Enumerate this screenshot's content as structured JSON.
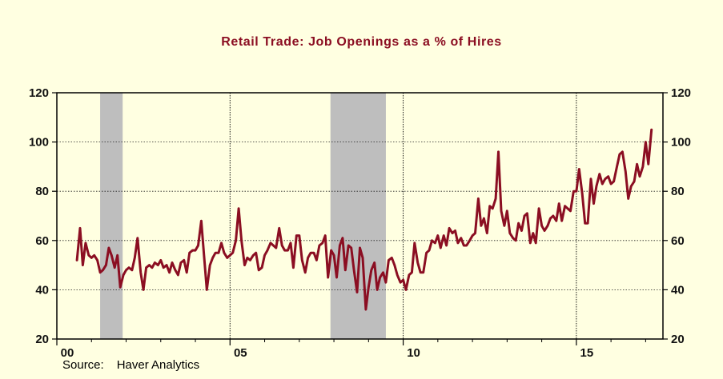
{
  "chart_data": {
    "type": "line",
    "title": "Retail Trade: Job Openings as a % of Hires",
    "source_label": "Source:",
    "source": "Haver Analytics",
    "ylim": [
      20,
      120
    ],
    "y_ticks": [
      20,
      40,
      60,
      80,
      100,
      120
    ],
    "y_tick_labels": [
      "20",
      "40",
      "60",
      "80",
      "100",
      "120"
    ],
    "x_range": [
      2000,
      2017.5
    ],
    "x_ticks": [
      2000,
      2005,
      2010,
      2015
    ],
    "x_tick_labels": [
      "00",
      "05",
      "10",
      "15"
    ],
    "x_vlines": [
      2005,
      2010,
      2015
    ],
    "grid": "dotted horizontal lines at 40, 60, 80, 100",
    "recessions": [
      [
        2001.25,
        2001.9
      ],
      [
        2007.9,
        2009.5
      ]
    ],
    "colors": {
      "line": "#8b0e22",
      "recession": "#bebebe",
      "background": "#ffffe1",
      "title": "#8b0e22"
    },
    "series": [
      {
        "x": [
          2000.58,
          2000.67,
          2000.75,
          2000.83,
          2000.92,
          2001.0,
          2001.08,
          2001.17,
          2001.25,
          2001.33,
          2001.42,
          2001.5,
          2001.58,
          2001.67,
          2001.75,
          2001.83,
          2001.92,
          2002.0,
          2002.08,
          2002.17,
          2002.25,
          2002.33,
          2002.42,
          2002.5,
          2002.58,
          2002.67,
          2002.75,
          2002.83,
          2002.92,
          2003.0,
          2003.08,
          2003.17,
          2003.25,
          2003.33,
          2003.42,
          2003.5,
          2003.58,
          2003.67,
          2003.75,
          2003.83,
          2003.92,
          2004.0,
          2004.08,
          2004.17,
          2004.25,
          2004.33,
          2004.42,
          2004.5,
          2004.58,
          2004.67,
          2004.75,
          2004.83,
          2004.92,
          2005.0,
          2005.08,
          2005.17,
          2005.25,
          2005.33,
          2005.42,
          2005.5,
          2005.58,
          2005.67,
          2005.75,
          2005.83,
          2005.92,
          2006.0,
          2006.08,
          2006.17,
          2006.25,
          2006.33,
          2006.42,
          2006.5,
          2006.58,
          2006.67,
          2006.75,
          2006.83,
          2006.92,
          2007.0,
          2007.08,
          2007.17,
          2007.25,
          2007.33,
          2007.42,
          2007.5,
          2007.58,
          2007.67,
          2007.75,
          2007.83,
          2007.92,
          2008.0,
          2008.08,
          2008.17,
          2008.25,
          2008.33,
          2008.42,
          2008.5,
          2008.58,
          2008.67,
          2008.75,
          2008.83,
          2008.92,
          2009.0,
          2009.08,
          2009.17,
          2009.25,
          2009.33,
          2009.42,
          2009.5,
          2009.58,
          2009.67,
          2009.75,
          2009.83,
          2009.92,
          2010.0,
          2010.08,
          2010.17,
          2010.25,
          2010.33,
          2010.42,
          2010.5,
          2010.58,
          2010.67,
          2010.75,
          2010.83,
          2010.92,
          2011.0,
          2011.08,
          2011.17,
          2011.25,
          2011.33,
          2011.42,
          2011.5,
          2011.58,
          2011.67,
          2011.75,
          2011.83,
          2011.92,
          2012.0,
          2012.08,
          2012.17,
          2012.25,
          2012.33,
          2012.42,
          2012.5,
          2012.58,
          2012.67,
          2012.75,
          2012.83,
          2012.92,
          2013.0,
          2013.08,
          2013.17,
          2013.25,
          2013.33,
          2013.42,
          2013.5,
          2013.58,
          2013.67,
          2013.75,
          2013.83,
          2013.92,
          2014.0,
          2014.08,
          2014.17,
          2014.25,
          2014.33,
          2014.42,
          2014.5,
          2014.58,
          2014.67,
          2014.75,
          2014.83,
          2014.92,
          2015.0,
          2015.08,
          2015.17,
          2015.25,
          2015.33,
          2015.42,
          2015.5,
          2015.58,
          2015.67,
          2015.75,
          2015.83,
          2015.92,
          2016.0,
          2016.08,
          2016.17,
          2016.25,
          2016.33,
          2016.42,
          2016.5,
          2016.58,
          2016.67,
          2016.75,
          2016.83,
          2016.92,
          2017.0,
          2017.08,
          2017.17
        ],
        "values": [
          52,
          65,
          50,
          59,
          54,
          53,
          54,
          52,
          47,
          48,
          50,
          57,
          54,
          49,
          54,
          41,
          46,
          48,
          49,
          48,
          53,
          61,
          47,
          40,
          49,
          50,
          49,
          51,
          50,
          52,
          49,
          50,
          47,
          51,
          48,
          46,
          51,
          52,
          47,
          55,
          56,
          56,
          58,
          68,
          54,
          40,
          50,
          53,
          55,
          55,
          59,
          55,
          53,
          54,
          55,
          60,
          73,
          60,
          50,
          53,
          52,
          54,
          55,
          48,
          49,
          54,
          56,
          59,
          58,
          57,
          65,
          58,
          56,
          56,
          59,
          49,
          62,
          62,
          52,
          47,
          53,
          55,
          55,
          52,
          58,
          59,
          62,
          45,
          56,
          54,
          45,
          58,
          61,
          48,
          58,
          57,
          48,
          39,
          57,
          53,
          32,
          41,
          48,
          51,
          40,
          45,
          47,
          43,
          52,
          53,
          50,
          46,
          43,
          44,
          40,
          46,
          47,
          59,
          51,
          47,
          47,
          55,
          56,
          60,
          59,
          62,
          57,
          62,
          58,
          65,
          63,
          64,
          59,
          61,
          58,
          58,
          60,
          62,
          63,
          77,
          66,
          69,
          63,
          74,
          73,
          77,
          96,
          72,
          66,
          72,
          63,
          61,
          60,
          67,
          64,
          70,
          71,
          59,
          63,
          59,
          73,
          66,
          64,
          66,
          69,
          70,
          68,
          75,
          68,
          74,
          73,
          72,
          80,
          80,
          89,
          79,
          67,
          67,
          85,
          75,
          82,
          87,
          83,
          85,
          86,
          83,
          84,
          90,
          95,
          96,
          88,
          77,
          82,
          84,
          91,
          86,
          90,
          100,
          91,
          105
        ]
      }
    ]
  }
}
